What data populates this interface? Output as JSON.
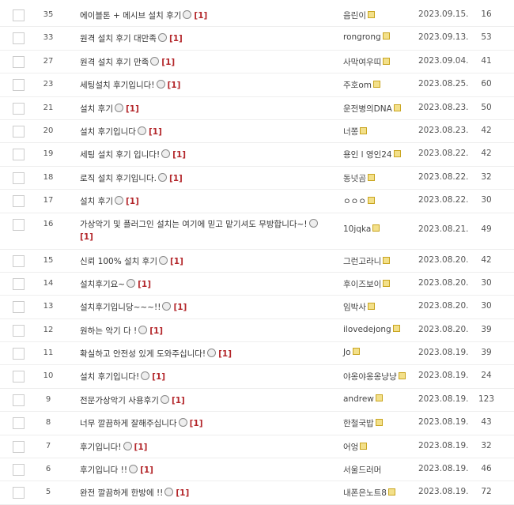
{
  "posts": [
    {
      "no": "35",
      "title": "에이블톤 + 메시브 설치 후기",
      "comments": "[1]",
      "author": "음린이",
      "badge": true,
      "date": "2023.09.15.",
      "views": "16"
    },
    {
      "no": "33",
      "title": "원격 설치 후기 대만족",
      "comments": "[1]",
      "author": "rongrong",
      "badge": true,
      "date": "2023.09.13.",
      "views": "53"
    },
    {
      "no": "27",
      "title": "원격 설치 후기 만족",
      "comments": "[1]",
      "author": "사막여우띠",
      "badge": true,
      "date": "2023.09.04.",
      "views": "41"
    },
    {
      "no": "23",
      "title": "세팅설치 후기입니다!",
      "comments": "[1]",
      "author": "주호om",
      "badge": true,
      "date": "2023.08.25.",
      "views": "60"
    },
    {
      "no": "21",
      "title": "설치 후기",
      "comments": "[1]",
      "author": "운전병의DNA",
      "badge": true,
      "date": "2023.08.23.",
      "views": "50"
    },
    {
      "no": "20",
      "title": "설치 후기입니다",
      "comments": "[1]",
      "author": "너쫑",
      "badge": true,
      "date": "2023.08.23.",
      "views": "42"
    },
    {
      "no": "19",
      "title": "세팅 설치 후기 입니다!",
      "comments": "[1]",
      "author": "용인 l 영인24",
      "badge": true,
      "date": "2023.08.22.",
      "views": "42"
    },
    {
      "no": "18",
      "title": "로직 설치 후기입니다.",
      "comments": "[1]",
      "author": "동넛곰",
      "badge": true,
      "date": "2023.08.22.",
      "views": "32"
    },
    {
      "no": "17",
      "title": "설치 후기",
      "comments": "[1]",
      "author": "ㅇㅇㅇ",
      "badge": true,
      "date": "2023.08.22.",
      "views": "30"
    },
    {
      "no": "16",
      "title": "가상악기 및 플러그인 설치는 여기에 믿고 맡기셔도 무방합니다~!",
      "comments": "[1]",
      "author": "10jqka",
      "badge": true,
      "date": "2023.08.21.",
      "views": "49",
      "tall": true
    },
    {
      "no": "15",
      "title": "신뢰 100% 설치 후기",
      "comments": "[1]",
      "author": "그런고라니",
      "badge": true,
      "date": "2023.08.20.",
      "views": "42"
    },
    {
      "no": "14",
      "title": "설치후기요~",
      "comments": "[1]",
      "author": "후이즈보이",
      "badge": true,
      "date": "2023.08.20.",
      "views": "30"
    },
    {
      "no": "13",
      "title": "설치후기입니당~~~!!",
      "comments": "[1]",
      "author": "임박사",
      "badge": true,
      "date": "2023.08.20.",
      "views": "30"
    },
    {
      "no": "12",
      "title": "원하는 악기 다 !",
      "comments": "[1]",
      "author": "ilovedejong",
      "badge": true,
      "date": "2023.08.20.",
      "views": "39"
    },
    {
      "no": "11",
      "title": "확실하고 안전성 있게 도와주십니다!",
      "comments": "[1]",
      "author": "Jo",
      "badge": true,
      "date": "2023.08.19.",
      "views": "39"
    },
    {
      "no": "10",
      "title": "설치 후기입니다!",
      "comments": "[1]",
      "author": "야옹야옹옹냥냥",
      "badge": true,
      "date": "2023.08.19.",
      "views": "24"
    },
    {
      "no": "9",
      "title": "전문가상악기 사용후기",
      "comments": "[1]",
      "author": "andrew",
      "badge": true,
      "date": "2023.08.19.",
      "views": "123"
    },
    {
      "no": "8",
      "title": "너무 깔끔하게 잘해주십니다",
      "comments": "[1]",
      "author": "한철국밥",
      "badge": true,
      "date": "2023.08.19.",
      "views": "43"
    },
    {
      "no": "7",
      "title": "후기입니다!",
      "comments": "[1]",
      "author": "어엉",
      "badge": true,
      "date": "2023.08.19.",
      "views": "32"
    },
    {
      "no": "6",
      "title": "후기입니다 !!",
      "comments": "[1]",
      "author": "서울드러머",
      "badge": false,
      "date": "2023.08.19.",
      "views": "46"
    },
    {
      "no": "5",
      "title": "완전 깔끔하게 한방에 !!",
      "comments": "[1]",
      "author": "내폰은노트8",
      "badge": true,
      "date": "2023.08.19.",
      "views": "72"
    }
  ]
}
